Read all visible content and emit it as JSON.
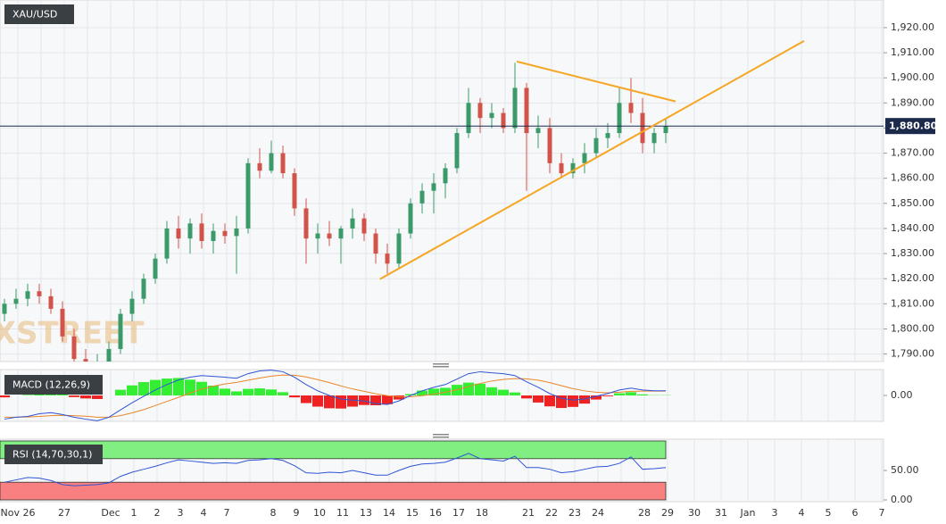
{
  "chart_data": {
    "type": "candlestick",
    "symbol": "XAU/USD",
    "watermark": "FXSTREET",
    "categories": [
      "Nov 26",
      null,
      "27",
      null,
      "Dec",
      "1",
      "2",
      "3",
      "4",
      "7",
      null,
      "8",
      "9",
      "10",
      "11",
      "13",
      "14",
      "15",
      "16",
      "17",
      "18",
      null,
      "21",
      "22",
      "23",
      "24",
      null,
      "28",
      "29",
      "30",
      "31",
      "Jan",
      "3",
      "4",
      "5",
      "6",
      "7"
    ],
    "candles": [
      [
        1806,
        1812,
        1803,
        1810
      ],
      [
        1810,
        1816,
        1808,
        1812
      ],
      [
        1812,
        1818,
        1809,
        1815
      ],
      [
        1815,
        1818,
        1810,
        1813
      ],
      [
        1813,
        1816,
        1806,
        1808
      ],
      [
        1808,
        1811,
        1795,
        1797
      ],
      [
        1797,
        1800,
        1785,
        1788
      ],
      [
        1788,
        1792,
        1780,
        1785
      ],
      [
        1785,
        1790,
        1782,
        1786
      ],
      [
        1786,
        1795,
        1784,
        1792
      ],
      [
        1792,
        1808,
        1790,
        1806
      ],
      [
        1806,
        1815,
        1803,
        1812
      ],
      [
        1812,
        1822,
        1810,
        1820
      ],
      [
        1820,
        1830,
        1818,
        1828
      ],
      [
        1828,
        1843,
        1826,
        1840
      ],
      [
        1840,
        1845,
        1832,
        1836
      ],
      [
        1836,
        1844,
        1830,
        1842
      ],
      [
        1842,
        1846,
        1832,
        1835
      ],
      [
        1835,
        1842,
        1830,
        1839
      ],
      [
        1839,
        1842,
        1834,
        1837
      ],
      [
        1837,
        1845,
        1822,
        1840
      ],
      [
        1840,
        1868,
        1838,
        1866
      ],
      [
        1866,
        1872,
        1860,
        1863
      ],
      [
        1863,
        1875,
        1862,
        1870
      ],
      [
        1870,
        1873,
        1860,
        1862
      ],
      [
        1862,
        1864,
        1845,
        1848
      ],
      [
        1848,
        1852,
        1826,
        1836
      ],
      [
        1836,
        1842,
        1830,
        1838
      ],
      [
        1838,
        1843,
        1833,
        1836
      ],
      [
        1836,
        1841,
        1826,
        1840
      ],
      [
        1840,
        1848,
        1836,
        1844
      ],
      [
        1844,
        1846,
        1835,
        1838
      ],
      [
        1838,
        1840,
        1826,
        1830
      ],
      [
        1830,
        1834,
        1822,
        1826
      ],
      [
        1826,
        1840,
        1824,
        1838
      ],
      [
        1838,
        1852,
        1836,
        1850
      ],
      [
        1850,
        1858,
        1846,
        1855
      ],
      [
        1855,
        1862,
        1846,
        1858
      ],
      [
        1858,
        1866,
        1852,
        1864
      ],
      [
        1864,
        1880,
        1862,
        1878
      ],
      [
        1878,
        1896,
        1876,
        1890
      ],
      [
        1890,
        1892,
        1878,
        1884
      ],
      [
        1884,
        1890,
        1880,
        1886
      ],
      [
        1886,
        1888,
        1878,
        1880
      ],
      [
        1880,
        1906,
        1878,
        1896
      ],
      [
        1896,
        1898,
        1855,
        1878
      ],
      [
        1878,
        1885,
        1872,
        1880
      ],
      [
        1880,
        1884,
        1862,
        1866
      ],
      [
        1866,
        1870,
        1860,
        1862
      ],
      [
        1862,
        1868,
        1860,
        1866
      ],
      [
        1866,
        1874,
        1862,
        1870
      ],
      [
        1870,
        1880,
        1868,
        1876
      ],
      [
        1876,
        1882,
        1872,
        1878
      ],
      [
        1878,
        1896,
        1876,
        1890
      ],
      [
        1890,
        1900,
        1882,
        1886
      ],
      [
        1886,
        1892,
        1870,
        1874
      ],
      [
        1874,
        1880,
        1870,
        1878
      ],
      [
        1878,
        1884,
        1874,
        1880.8
      ]
    ],
    "up_color": "#3c9a6a",
    "down_color": "#d2534a",
    "ylim": [
      1787,
      1931
    ],
    "yticks": [
      {
        "value": 1790,
        "label": "1,790.00"
      },
      {
        "value": 1800,
        "label": "1,800.00"
      },
      {
        "value": 1810,
        "label": "1,810.00"
      },
      {
        "value": 1820,
        "label": "1,820.00"
      },
      {
        "value": 1830,
        "label": "1,830.00"
      },
      {
        "value": 1840,
        "label": "1,840.00"
      },
      {
        "value": 1850,
        "label": "1,850.00"
      },
      {
        "value": 1860,
        "label": "1,860.00"
      },
      {
        "value": 1870,
        "label": "1,870.00"
      },
      {
        "value": 1880,
        "label": "1,880.00"
      },
      {
        "value": 1890,
        "label": "1,890.00"
      },
      {
        "value": 1900,
        "label": "1,900.00"
      },
      {
        "value": 1910,
        "label": "1,910.00"
      },
      {
        "value": 1920,
        "label": "1,920.00"
      }
    ],
    "current_price": {
      "value": 1880.8,
      "label": "1,880.80"
    },
    "trendlines": [
      {
        "color": "#f5a623",
        "points": [
          [
            15.6,
            1819.8
          ],
          [
            33.1,
            1914.7
          ]
        ]
      },
      {
        "color": "#f5a623",
        "points": [
          [
            21.5,
            1906.5
          ],
          [
            28.3,
            1890.6
          ]
        ]
      }
    ],
    "grid": true,
    "macd": {
      "label": "MACD (12,26,9)",
      "ylim": [
        -9.5,
        9.5
      ],
      "yticks": [
        {
          "value": 0,
          "label": "0.00"
        }
      ],
      "macd_color": "#2f55d4",
      "signal_color": "#e8862a",
      "up_color": "#33ee33",
      "down_color": "#ee2222",
      "macd": [
        -8.7,
        -8,
        -7.7,
        -6.7,
        -6.3,
        -7,
        -8,
        -8.7,
        -9.3,
        -8,
        -5.3,
        -2.7,
        -0.3,
        2,
        4,
        5.7,
        6.7,
        7.3,
        7,
        6.7,
        6.3,
        8,
        9,
        9.3,
        8.7,
        6.7,
        4,
        1.7,
        0,
        -1.3,
        -1.7,
        -2,
        -3,
        -3.3,
        -2,
        0,
        1.7,
        3,
        4,
        6,
        8,
        8.7,
        8.3,
        8,
        7.3,
        5,
        3,
        0.7,
        -1,
        -1.7,
        -1.3,
        -0.3,
        0.7,
        2,
        2.7,
        2,
        1.7,
        1.7
      ],
      "signal": [
        -8,
        -8,
        -7.9,
        -7.7,
        -7.4,
        -7.3,
        -7.4,
        -7.6,
        -8,
        -8,
        -7.4,
        -6.4,
        -5.2,
        -3.7,
        -2.2,
        -0.7,
        0.9,
        2.3,
        3.4,
        4.2,
        4.8,
        5.6,
        6.4,
        7.1,
        7.5,
        7.4,
        6.8,
        5.8,
        4.7,
        3.5,
        2.4,
        1.5,
        0.6,
        -0.1,
        -0.5,
        -0.5,
        -0.1,
        0.5,
        1.2,
        2.1,
        3.3,
        4.4,
        5.3,
        5.9,
        6.2,
        6.1,
        5.6,
        4.7,
        3.6,
        2.5,
        1.7,
        1.2,
        1,
        1.2,
        1.5,
        1.6,
        1.6,
        1.6
      ],
      "histogram": [
        -0.7,
        0,
        0.2,
        1,
        1.1,
        0.3,
        -0.6,
        -1.1,
        -1.3,
        0,
        2.1,
        3.7,
        4.9,
        5.7,
        6.2,
        6.4,
        5.8,
        5,
        3.6,
        2.5,
        1.5,
        2.4,
        2.6,
        2.2,
        1.2,
        -0.7,
        -2.8,
        -4.1,
        -4.7,
        -4.8,
        -4.1,
        -3.5,
        -3.6,
        -3.2,
        -1.5,
        0.5,
        1.8,
        2.5,
        2.8,
        3.9,
        4.7,
        4.3,
        3,
        2.1,
        1.1,
        -1.1,
        -2.6,
        -4,
        -4.6,
        -4.2,
        -3,
        -1.5,
        -0.3,
        0.8,
        1.2,
        0.4,
        0.1,
        0.1
      ]
    },
    "rsi": {
      "label": "RSI (14,70,30,1)",
      "ylim": [
        0,
        100
      ],
      "yticks": [
        {
          "value": 0,
          "label": "0.00"
        },
        {
          "value": 50,
          "label": "50.00"
        }
      ],
      "overbought": 70,
      "oversold": 30,
      "color": "#2f55d4",
      "overbought_color": "#80ee80",
      "oversold_color": "#f98080",
      "values": [
        30,
        34,
        38,
        37,
        33,
        26,
        24,
        25,
        26,
        29,
        40,
        47,
        52,
        57,
        63,
        68,
        66,
        64,
        62,
        63,
        62,
        67,
        68,
        70,
        67,
        58,
        46,
        45,
        47,
        46,
        50,
        46,
        42,
        42,
        50,
        57,
        61,
        62,
        64,
        71,
        79,
        70,
        68,
        66,
        74,
        55,
        55,
        52,
        46,
        48,
        52,
        56,
        57,
        62,
        73,
        52,
        53,
        55
      ]
    }
  }
}
